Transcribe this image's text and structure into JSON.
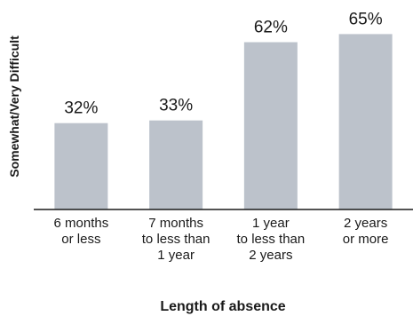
{
  "chart_data": {
    "type": "bar",
    "categories": [
      [
        "6 months",
        "or less"
      ],
      [
        "7 months",
        "to less than",
        "1 year"
      ],
      [
        "1 year",
        "to less than",
        "2 years"
      ],
      [
        "2 years",
        "or more"
      ]
    ],
    "values": [
      32,
      33,
      62,
      65
    ],
    "data_labels": [
      "32%",
      "33%",
      "62%",
      "65%"
    ],
    "xlabel": "Length of absence",
    "ylabel": "Somewhat/Very Difficult",
    "ylim": [
      0,
      75
    ],
    "grid": false,
    "legend": "none",
    "bar_color": "#bcc2cb",
    "axis_color": "#1a1a1a"
  }
}
